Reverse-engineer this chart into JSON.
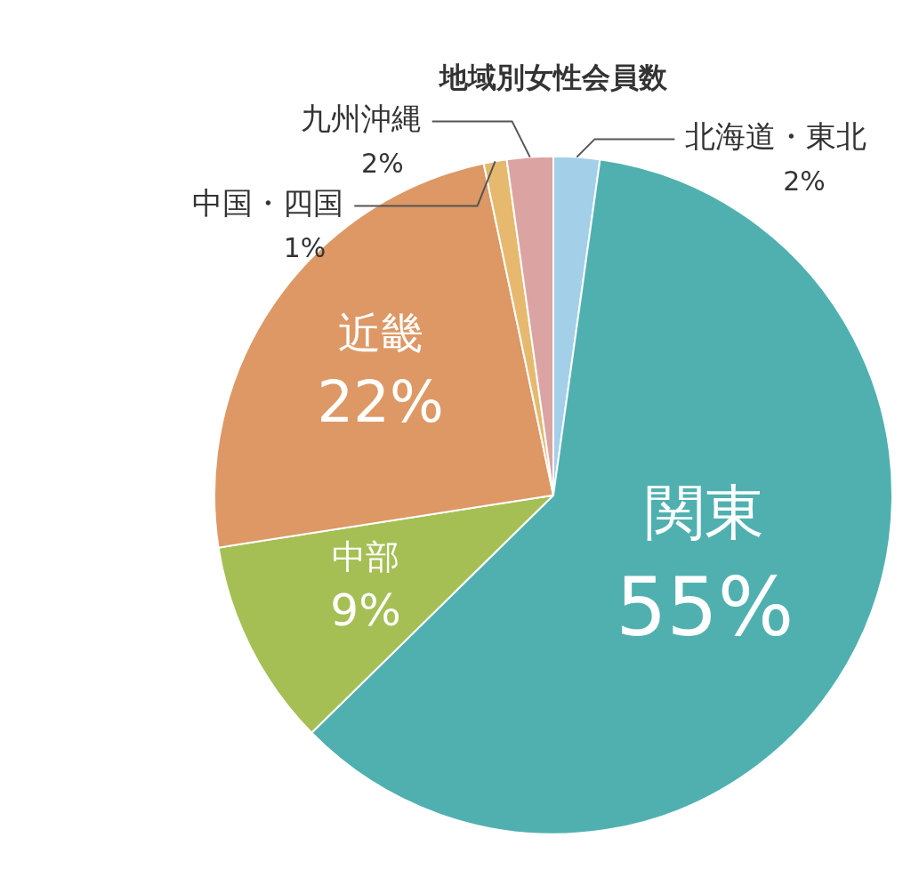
{
  "chart_data": {
    "type": "pie",
    "title": "地域別女性会員数",
    "categories": [
      "北海道・東北",
      "関東",
      "中部",
      "近畿",
      "中国・四国",
      "九州沖縄"
    ],
    "values": [
      2,
      55,
      9,
      22,
      1,
      2
    ],
    "value_labels": [
      "2%",
      "55%",
      "9%",
      "22%",
      "1%",
      "2%"
    ],
    "colors": [
      "#a3cfe9",
      "#50b0b0",
      "#a5bf55",
      "#dd9865",
      "#e6b96e",
      "#dca3a3"
    ],
    "legend": false
  }
}
